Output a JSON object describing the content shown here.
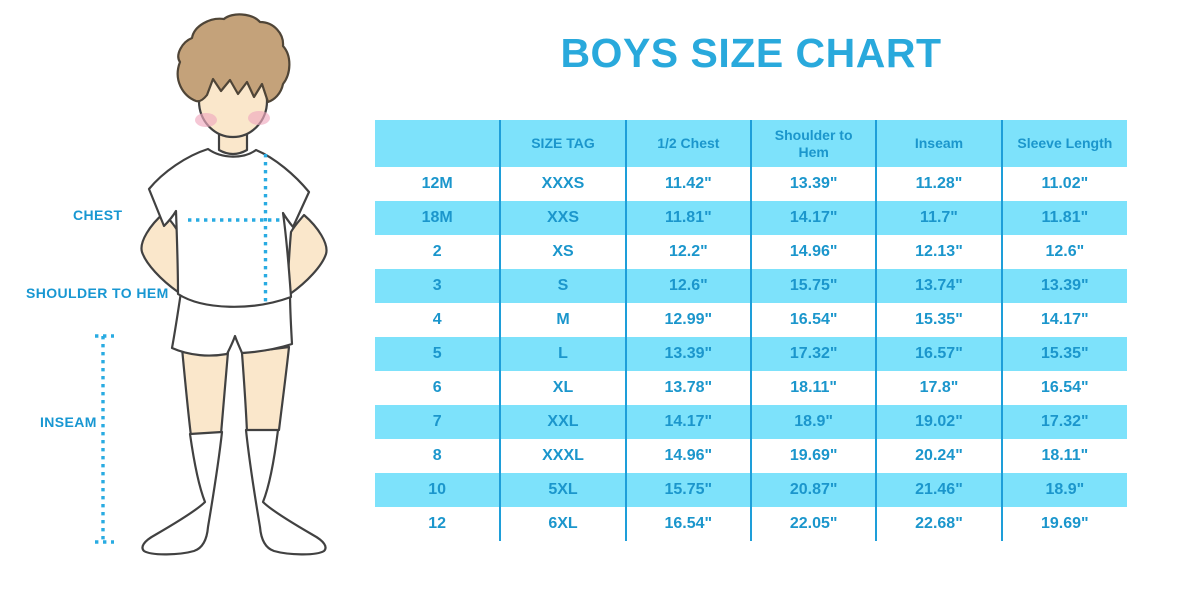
{
  "title": "BOYS SIZE CHART",
  "figure": {
    "description": "Back view of a boy in a white t-shirt, white shorts and knee-high socks with dotted measurement guides",
    "labels": {
      "chest": "CHEST",
      "shoulder_to_hem": "SHOULDER TO HEM",
      "inseam": "INSEAM"
    }
  },
  "colors": {
    "title_blue": "#29A9DC",
    "table_row_blue": "#7DE2FB",
    "table_divider_blue": "#1E9ED9",
    "table_text_blue": "#1B96CC",
    "label_blue": "#1897D2",
    "dotted_line_blue": "#29ABE2",
    "skin": "#FAE7CB",
    "hair": "#C4A27A"
  },
  "chart_data": {
    "type": "table",
    "title": "BOYS SIZE CHART",
    "units": "inches",
    "headers": [
      "",
      "SIZE TAG",
      "1/2 Chest",
      "Shoulder to Hem",
      "Inseam",
      "Sleeve Length"
    ],
    "rows": [
      [
        "12M",
        "XXXS",
        "11.42\"",
        "13.39\"",
        "11.28\"",
        "11.02\""
      ],
      [
        "18M",
        "XXS",
        "11.81\"",
        "14.17\"",
        "11.7\"",
        "11.81\""
      ],
      [
        "2",
        "XS",
        "12.2\"",
        "14.96\"",
        "12.13\"",
        "12.6\""
      ],
      [
        "3",
        "S",
        "12.6\"",
        "15.75\"",
        "13.74\"",
        "13.39\""
      ],
      [
        "4",
        "M",
        "12.99\"",
        "16.54\"",
        "15.35\"",
        "14.17\""
      ],
      [
        "5",
        "L",
        "13.39\"",
        "17.32\"",
        "16.57\"",
        "15.35\""
      ],
      [
        "6",
        "XL",
        "13.78\"",
        "18.11\"",
        "17.8\"",
        "16.54\""
      ],
      [
        "7",
        "XXL",
        "14.17\"",
        "18.9\"",
        "19.02\"",
        "17.32\""
      ],
      [
        "8",
        "XXXL",
        "14.96\"",
        "19.69\"",
        "20.24\"",
        "18.11\""
      ],
      [
        "10",
        "5XL",
        "15.75\"",
        "20.87\"",
        "21.46\"",
        "18.9\""
      ],
      [
        "12",
        "6XL",
        "16.54\"",
        "22.05\"",
        "22.68\"",
        "19.69\""
      ]
    ]
  }
}
